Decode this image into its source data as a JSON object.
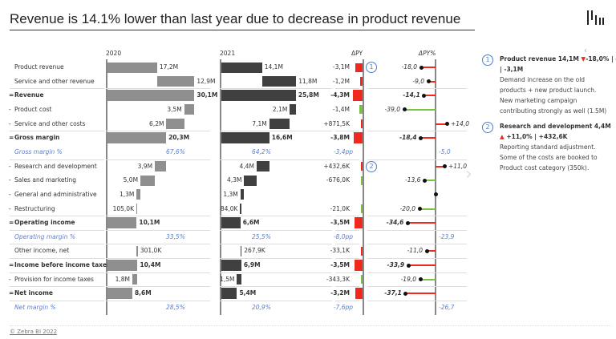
{
  "title": "Revenue is 14.1% lower than last year due to decrease in product revenue",
  "footer": "© Zebra BI 2022",
  "columns": {
    "y2020": "2020",
    "y2021": "2021",
    "dpy": "ΔPY",
    "dpy_pct": "ΔPY%"
  },
  "colors": {
    "bar2020": "#8f8f8f",
    "bar2021": "#404040",
    "negative": "#f0291e",
    "positive": "#7cc242",
    "percent": "#5b7fd0"
  },
  "rows": [
    {
      "prefix": "",
      "label": "Product revenue",
      "kind": "add",
      "v2020": 17.2,
      "l2020": "17,2M",
      "v2021": 14.1,
      "l2021": "14,1M",
      "dpy": -3.1,
      "ldpy": "-3,1M",
      "dpct": -18.0,
      "ldpct": "-18,0",
      "good": false,
      "note": "1"
    },
    {
      "prefix": "",
      "label": "Service and other revenue",
      "kind": "add",
      "v2020": 12.9,
      "l2020": "12,9M",
      "v2021": 11.8,
      "l2021": "11,8M",
      "dpy": -1.2,
      "ldpy": "-1,2M",
      "dpct": -9.0,
      "ldpct": "-9,0",
      "good": false
    },
    {
      "prefix": "=",
      "label": "Revenue",
      "kind": "total",
      "v2020": 30.1,
      "l2020": "30,1M",
      "v2021": 25.8,
      "l2021": "25,8M",
      "dpy": -4.3,
      "ldpy": "-4,3M",
      "dpct": -14.1,
      "ldpct": "-14,1",
      "good": false
    },
    {
      "prefix": "-",
      "label": "Product cost",
      "kind": "sub",
      "v2020": 3.5,
      "l2020": "3,5M",
      "v2021": 2.1,
      "l2021": "2,1M",
      "dpy": -1.4,
      "ldpy": "-1,4M",
      "dpct": -39.0,
      "ldpct": "-39,0",
      "good": true
    },
    {
      "prefix": "-",
      "label": "Service and other costs",
      "kind": "sub",
      "v2020": 6.2,
      "l2020": "6,2M",
      "v2021": 7.1,
      "l2021": "7,1M",
      "dpy": 0.8715,
      "ldpy": "+871,5K",
      "dpct": 14.0,
      "ldpct": "+14,0",
      "good": false
    },
    {
      "prefix": "=",
      "label": "Gross margin",
      "kind": "total",
      "v2020": 20.3,
      "l2020": "20,3M",
      "v2021": 16.6,
      "l2021": "16,6M",
      "dpy": -3.8,
      "ldpy": "-3,8M",
      "dpct": -18.4,
      "ldpct": "-18,4",
      "good": false
    },
    {
      "prefix": "",
      "label": "Gross margin %",
      "kind": "pct",
      "l2020": "67,6%",
      "l2021": "64,2%",
      "ldpy": "-3,4pp",
      "ldpct": "-5,0"
    },
    {
      "prefix": "-",
      "label": "Research and development",
      "kind": "sub",
      "v2020": 3.9,
      "l2020": "3,9M",
      "v2021": 4.4,
      "l2021": "4,4M",
      "dpy": 0.4326,
      "ldpy": "+432,6K",
      "dpct": 11.0,
      "ldpct": "+11,0",
      "good": false,
      "note": "2"
    },
    {
      "prefix": "-",
      "label": "Sales and marketing",
      "kind": "sub",
      "v2020": 5.0,
      "l2020": "5,0M",
      "v2021": 4.3,
      "l2021": "4,3M",
      "dpy": -0.676,
      "ldpy": "-676,0K",
      "dpct": -13.6,
      "ldpct": "-13,6",
      "good": true
    },
    {
      "prefix": "-",
      "label": "General and administrative",
      "kind": "sub",
      "v2020": 1.3,
      "l2020": "1,3M",
      "v2021": 1.3,
      "l2021": "1,3M",
      "dpy": 0,
      "ldpy": "",
      "dpct": 0,
      "ldpct": "",
      "good": true
    },
    {
      "prefix": "-",
      "label": "Restructuring",
      "kind": "sub",
      "v2020": 0.105,
      "l2020": "105,0K",
      "v2021": 0.084,
      "l2021": "84,0K",
      "dpy": -0.021,
      "ldpy": "-21,0K",
      "dpct": -20.0,
      "ldpct": "-20,0",
      "good": true
    },
    {
      "prefix": "=",
      "label": "Operating income",
      "kind": "total",
      "v2020": 10.1,
      "l2020": "10,1M",
      "v2021": 6.6,
      "l2021": "6,6M",
      "dpy": -3.5,
      "ldpy": "-3,5M",
      "dpct": -34.6,
      "ldpct": "-34,6",
      "good": false
    },
    {
      "prefix": "",
      "label": "Operating margin %",
      "kind": "pct",
      "l2020": "33,5%",
      "l2021": "25,5%",
      "ldpy": "-8,0pp",
      "ldpct": "-23,9"
    },
    {
      "prefix": "",
      "label": "Other income, net",
      "kind": "add",
      "v2020": 0.301,
      "l2020": "301,0K",
      "v2021": 0.268,
      "l2021": "267,9K",
      "dpy": -0.0331,
      "ldpy": "-33,1K",
      "dpct": -11.0,
      "ldpct": "-11,0",
      "good": false
    },
    {
      "prefix": "=",
      "label": "Income before income taxes",
      "kind": "total",
      "v2020": 10.4,
      "l2020": "10,4M",
      "v2021": 6.9,
      "l2021": "6,9M",
      "dpy": -3.5,
      "ldpy": "-3,5M",
      "dpct": -33.9,
      "ldpct": "-33,9",
      "good": false
    },
    {
      "prefix": "-",
      "label": "Provision for income taxes",
      "kind": "sub",
      "v2020": 1.8,
      "l2020": "1,8M",
      "v2021": 1.5,
      "l2021": "1,5M",
      "dpy": -0.343,
      "ldpy": "-343,3K",
      "dpct": -19.0,
      "ldpct": "-19,0",
      "good": true
    },
    {
      "prefix": "=",
      "label": "Net income",
      "kind": "total",
      "v2020": 8.6,
      "l2020": "8,6M",
      "v2021": 5.4,
      "l2021": "5,4M",
      "dpy": -3.2,
      "ldpy": "-3,2M",
      "dpct": -37.1,
      "ldpct": "-37,1",
      "good": false
    },
    {
      "prefix": "",
      "label": "Net margin %",
      "kind": "pct",
      "l2020": "28,5%",
      "l2021": "20,9%",
      "ldpy": "-7,6pp",
      "ldpct": "-26,7"
    }
  ],
  "comments": [
    {
      "num": "1",
      "head": "Product revenue 14,1M",
      "arrow": "▼",
      "delta": "-18,0% | -3,1M",
      "text": [
        "Demand increase on the old",
        "products + new product launch.",
        "New marketing campaign",
        "contributing strongly as well (1.5M)"
      ]
    },
    {
      "num": "2",
      "head": "Research and development 4,4M",
      "arrow": "▲",
      "delta": "+11,0% | +432,6K",
      "text": [
        "Reporting standard adjustment.",
        "Some of the costs are booked to",
        "Product cost category (350k)."
      ]
    }
  ]
}
